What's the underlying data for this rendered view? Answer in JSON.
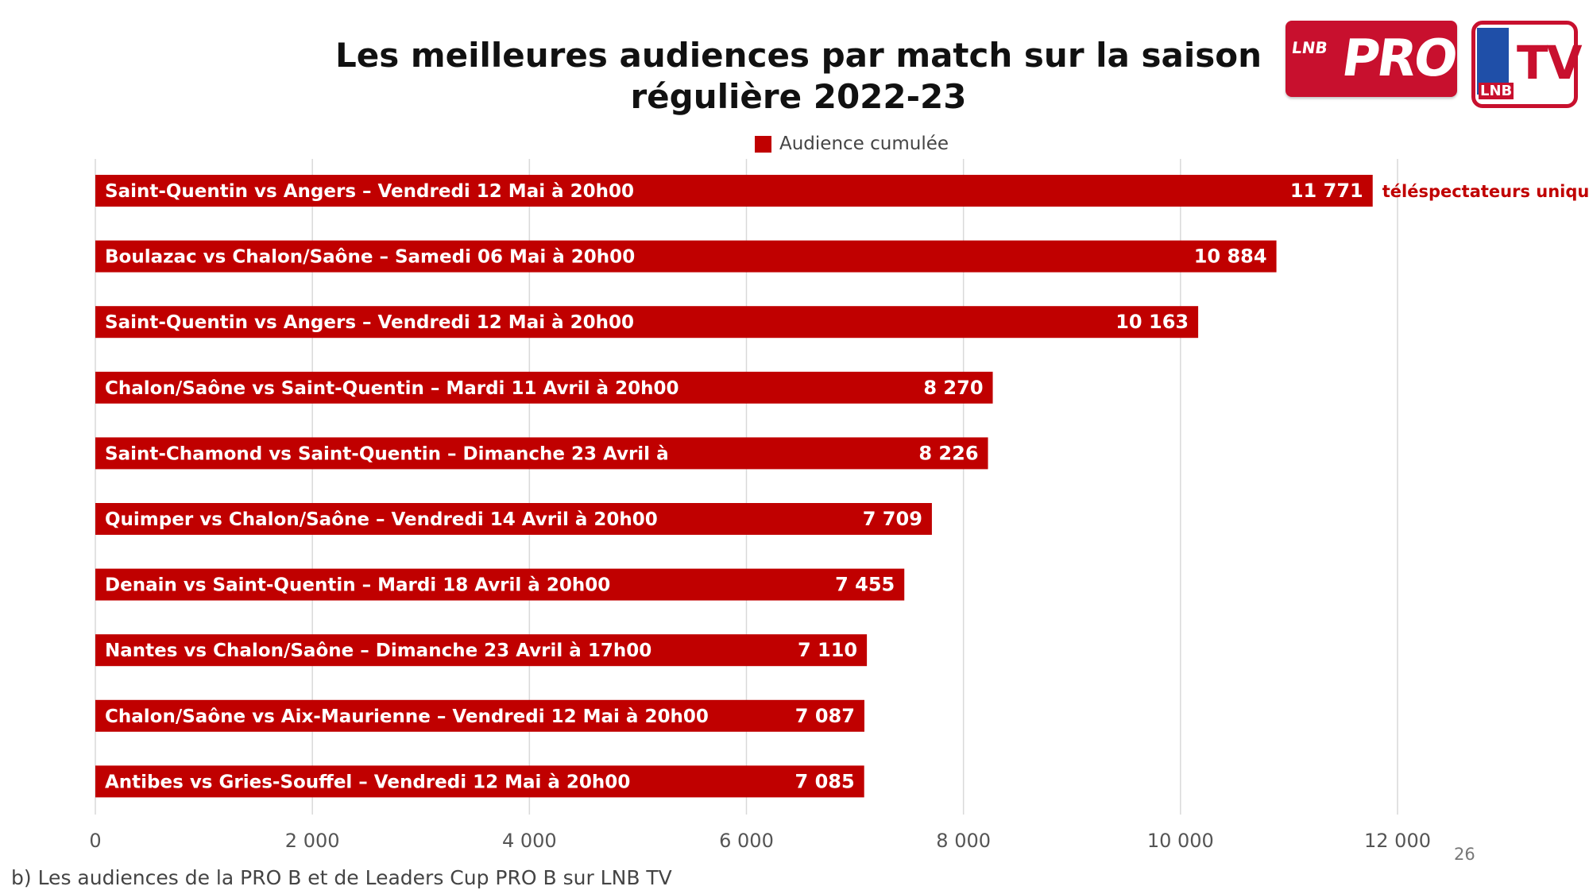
{
  "slide": {
    "title_line1": "Les meilleures audiences par match sur la saison",
    "title_line2": "régulière 2022-23",
    "footnote": "b) Les audiences de la PRO B et de Leaders Cup PRO B sur LNB TV",
    "page_number": "26"
  },
  "logos": {
    "prob_small": "LNB",
    "prob_main": "PRO B",
    "lnbtv_badge": "LNB",
    "lnbtv_main": "TV"
  },
  "colors": {
    "bar": "#c00000",
    "gridline": "#d9d9d9",
    "axis_text": "#555555",
    "logo_red": "#c8102e"
  },
  "chart_data": {
    "type": "bar",
    "orientation": "horizontal",
    "legend": "Audience cumulée",
    "annotation": "téléspectateurs uniques",
    "categories": [
      "Saint-Quentin vs Angers – Vendredi 12 Mai à 20h00",
      "Boulazac vs Chalon/Saône – Samedi 06 Mai à 20h00",
      "Saint-Quentin vs Angers – Vendredi 12 Mai à 20h00",
      "Chalon/Saône vs Saint-Quentin – Mardi 11 Avril à 20h00",
      "Saint-Chamond vs Saint-Quentin – Dimanche 23 Avril à",
      "Quimper vs Chalon/Saône – Vendredi 14 Avril à 20h00",
      "Denain vs Saint-Quentin – Mardi 18 Avril à 20h00",
      "Nantes vs Chalon/Saône – Dimanche 23 Avril à 17h00",
      "Chalon/Saône vs Aix-Maurienne – Vendredi 12 Mai à 20h00",
      "Antibes vs Gries-Souffel – Vendredi 12 Mai à 20h00"
    ],
    "values": [
      11771,
      10884,
      10163,
      8270,
      8226,
      7709,
      7455,
      7110,
      7087,
      7085
    ],
    "value_labels": [
      "11 771",
      "10 884",
      "10 163",
      "8 270",
      "8 226",
      "7 709",
      "7 455",
      "7 110",
      "7 087",
      "7 085"
    ],
    "xlim": [
      0,
      12000
    ],
    "xticks": [
      0,
      2000,
      4000,
      6000,
      8000,
      10000,
      12000
    ],
    "xtick_labels": [
      "0",
      "2 000",
      "4 000",
      "6 000",
      "8 000",
      "10 000",
      "12 000"
    ],
    "grid": true
  }
}
